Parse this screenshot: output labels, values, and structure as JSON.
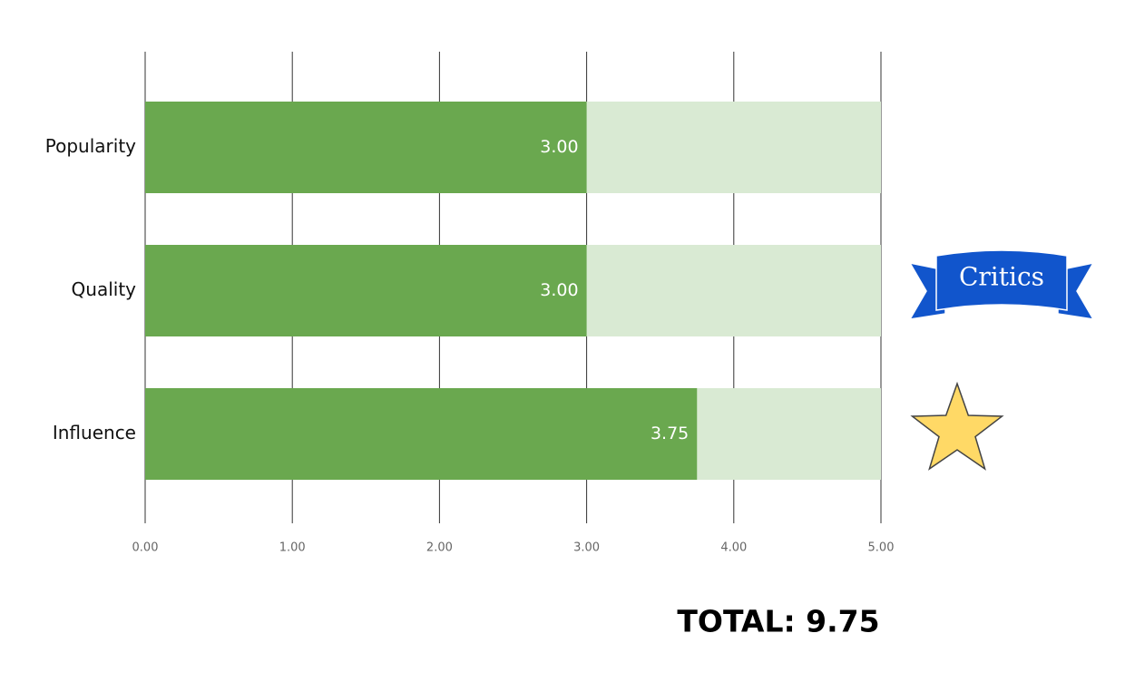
{
  "chart_data": {
    "type": "bar",
    "orientation": "horizontal",
    "categories": [
      "Popularity",
      "Quality",
      "Influence"
    ],
    "values": [
      3,
      3,
      3.75
    ],
    "value_labels": [
      "3.00",
      "3.00",
      "3.75"
    ],
    "color": "#6aa84f",
    "track_color": "#d9ead3",
    "xlim": [
      0,
      5
    ],
    "xticks": [
      {
        "value": 0,
        "label": "0.00"
      },
      {
        "value": 1,
        "label": "1.00"
      },
      {
        "value": 2,
        "label": "2.00"
      },
      {
        "value": 3,
        "label": "3.00"
      },
      {
        "value": 4,
        "label": "4.00"
      },
      {
        "value": 5,
        "label": "5.00"
      }
    ],
    "grid": true,
    "annotations": [
      "Critics",
      "TOTAL: 9.75"
    ]
  }
}
